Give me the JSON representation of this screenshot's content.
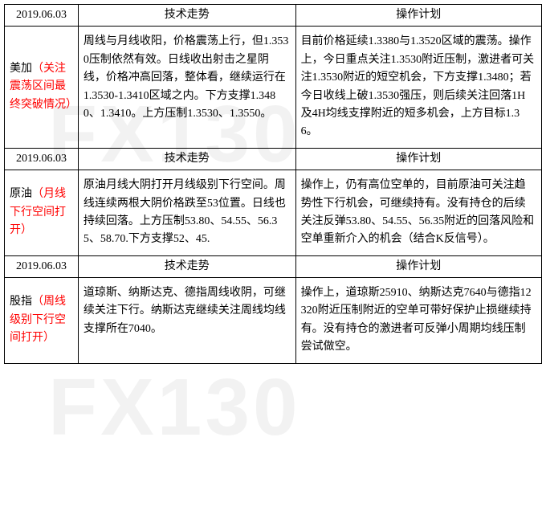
{
  "watermark": "FX130",
  "colors": {
    "border": "#000000",
    "text": "#000000",
    "highlight": "#ff0000",
    "background": "#ffffff"
  },
  "typography": {
    "base_fontsize": 14,
    "font_family": "SimSun",
    "line_height": 1.6
  },
  "headers": {
    "trend": "技术走势",
    "plan": "操作计划"
  },
  "sections": [
    {
      "date": "2019.06.03",
      "title_black": "美加",
      "title_red": "（关注震荡区间最终突破情况）",
      "trend": "周线与月线收阳，价格震荡上行，但1.3530压制依然有效。日线收出射击之星阴线，价格冲高回落，整体看，继续运行在1.3530-1.3410区域之内。下方支撑1.3480、1.3410。上方压制1.3530、1.3550。",
      "plan": "目前价格延续1.3380与1.3520区域的震荡。操作上，今日重点关注1.3530附近压制，激进者可关注1.3530附近的短空机会，下方支撑1.3480；若今日收线上破1.3530强压，则后续关注回落1H及4H均线支撑附近的短多机会，上方目标1.36。"
    },
    {
      "date": "2019.06.03",
      "title_black": "原油",
      "title_red": "（月线下行空间打开）",
      "trend": "原油月线大阴打开月线级别下行空间。周线连续两根大阴价格跌至53位置。日线也持续回落。上方压制53.80、54.55、56.35、58.70.下方支撑52、45.",
      "plan": "操作上，仍有高位空单的，目前原油可关注趋势性下行机会，可继续持有。没有持仓的后续关注反弹53.80、54.55、56.35附近的回落风险和空单重新介入的机会（结合K反信号）。"
    },
    {
      "date": "2019.06.03",
      "title_black": "股指",
      "title_red": "（周线级别下行空间打开）",
      "trend": "道琼斯、纳斯达克、德指周线收阴，可继续关注下行。纳斯达克继续关注周线均线支撑所在7040。",
      "plan": "操作上，道琼斯25910、纳斯达克7640与德指12320附近压制附近的空单可带好保护止损继续持有。没有持仓的激进者可反弹小周期均线压制尝试做空。"
    }
  ]
}
